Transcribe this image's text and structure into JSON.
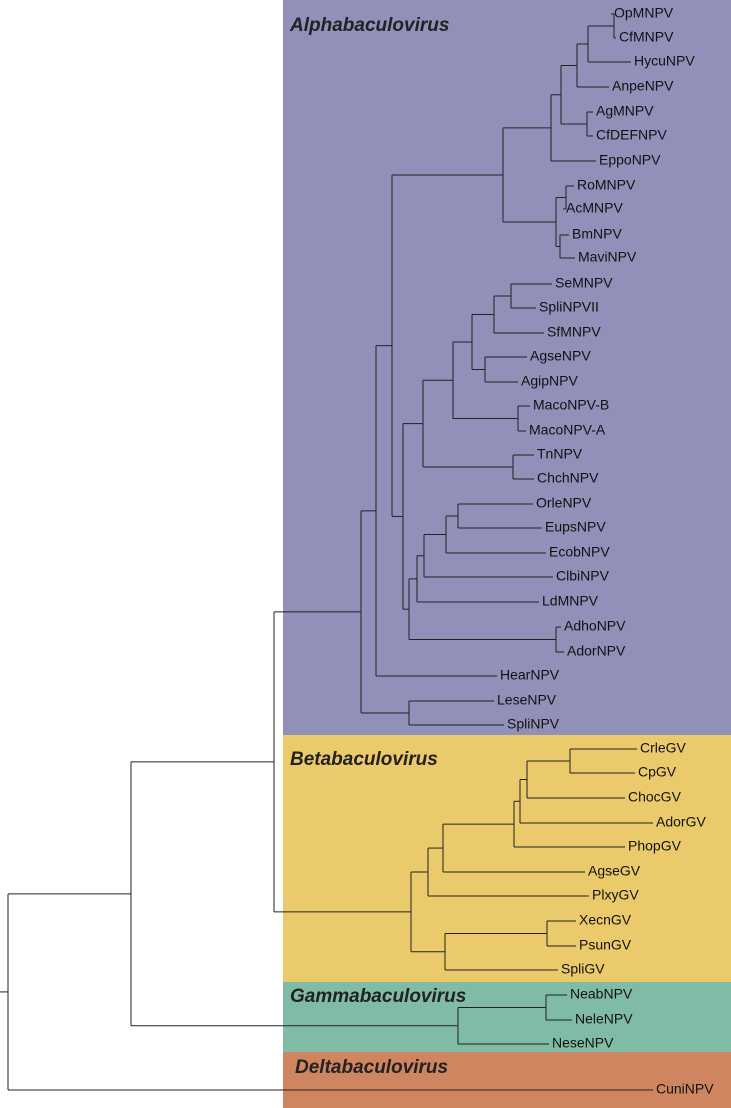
{
  "groups": [
    "Alphabaculovirus",
    "Betabaculovirus",
    "Gammabaculovirus",
    "Deltabaculovirus"
  ],
  "leaves": [
    "OpMNPV",
    "CfMNPV",
    "HycuNPV",
    "AnpeNPV",
    "AgMNPV",
    "CfDEFNPV",
    "EppoNPV",
    "RoMNPV",
    "AcMNPV",
    "BmNPV",
    "MaviNPV",
    "SeMNPV",
    "SpliNPVII",
    "SfMNPV",
    "AgseNPV",
    "AgipNPV",
    "MacoNPV-B",
    "MacoNPV-A",
    "TnNPV",
    "ChchNPV",
    "OrleNPV",
    "EupsNPV",
    "EcobNPV",
    "ClbiNPV",
    "LdMNPV",
    "AdhoNPV",
    "AdorNPV",
    "HearNPV",
    "LeseNPV",
    "SpliNPV",
    "CrleGV",
    "CpGV",
    "ChocGV",
    "AdorGV",
    "PhopGV",
    "AgseGV",
    "PlxyGV",
    "XecnGV",
    "PsunGV",
    "SpliGV",
    "NeabNPV",
    "NeleNPV",
    "NeseNPV",
    "CuniNPV"
  ]
}
